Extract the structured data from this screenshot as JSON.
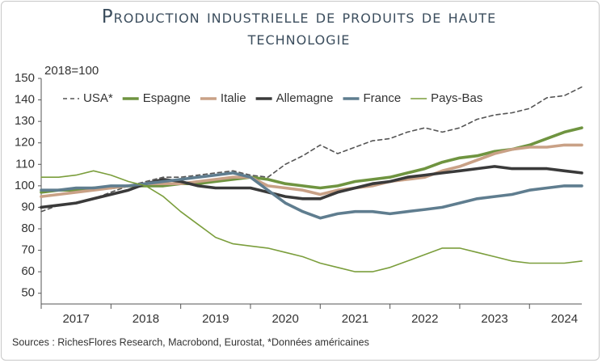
{
  "chart_data": {
    "type": "line",
    "title": "Production industrielle de produits de haute technologie",
    "subtitle": "2018=100",
    "source": "Sources : RichesFlores Research, Macrobond, Eurostat, *Données américaines",
    "x": [
      2017,
      2017.25,
      2017.5,
      2017.75,
      2018,
      2018.25,
      2018.5,
      2018.75,
      2019,
      2019.25,
      2019.5,
      2019.75,
      2020,
      2020.25,
      2020.5,
      2020.75,
      2021,
      2021.25,
      2021.5,
      2021.75,
      2022,
      2022.25,
      2022.5,
      2022.75,
      2023,
      2023.25,
      2023.5,
      2023.75,
      2024,
      2024.25,
      2024.5,
      2024.75
    ],
    "xlim": [
      2017,
      2024.75
    ],
    "xticks": [
      2017,
      2018,
      2019,
      2020,
      2021,
      2022,
      2023,
      2024
    ],
    "ylim": [
      45,
      150
    ],
    "yticks": [
      50,
      60,
      70,
      80,
      90,
      100,
      110,
      120,
      130,
      140,
      150
    ],
    "legend": "top-left",
    "series": [
      {
        "name": "USA*",
        "color": "#555555",
        "dashed": true,
        "values": [
          88,
          91,
          92,
          94,
          97,
          100,
          102,
          104,
          104,
          105,
          106,
          107,
          105,
          104,
          110,
          114,
          119,
          115,
          118,
          121,
          122,
          125,
          127,
          125,
          127,
          131,
          133,
          134,
          136,
          141,
          142,
          146
        ]
      },
      {
        "name": "Espagne",
        "color": "#6f9440",
        "values": [
          97,
          98,
          98,
          99,
          99,
          100,
          100,
          100,
          101,
          101,
          102,
          103,
          104,
          103,
          101,
          100,
          99,
          100,
          102,
          103,
          104,
          106,
          108,
          111,
          113,
          114,
          116,
          117,
          119,
          122,
          125,
          127
        ]
      },
      {
        "name": "Italie",
        "color": "#c9a186",
        "values": [
          95,
          96,
          97,
          98,
          99,
          100,
          101,
          101,
          101,
          102,
          103,
          104,
          104,
          100,
          99,
          98,
          96,
          98,
          99,
          100,
          102,
          103,
          104,
          107,
          109,
          112,
          115,
          117,
          118,
          118,
          119,
          119
        ]
      },
      {
        "name": "Allemagne",
        "color": "#3a3a3a",
        "values": [
          90,
          91,
          92,
          94,
          96,
          98,
          101,
          103,
          102,
          100,
          99,
          99,
          99,
          97,
          95,
          94,
          94,
          97,
          99,
          101,
          102,
          104,
          105,
          106,
          107,
          108,
          109,
          108,
          108,
          108,
          107,
          106
        ]
      },
      {
        "name": "France",
        "color": "#5f7d8f",
        "values": [
          98,
          98,
          99,
          99,
          100,
          100,
          101,
          102,
          103,
          104,
          105,
          106,
          104,
          98,
          92,
          88,
          85,
          87,
          88,
          88,
          87,
          88,
          89,
          90,
          92,
          94,
          95,
          96,
          98,
          99,
          100,
          100
        ]
      },
      {
        "name": "Pays-Bas",
        "color": "#7b9e3c",
        "thin": true,
        "values": [
          104,
          104,
          105,
          107,
          105,
          102,
          100,
          95,
          88,
          82,
          76,
          73,
          72,
          71,
          69,
          67,
          64,
          62,
          60,
          60,
          62,
          65,
          68,
          71,
          71,
          69,
          67,
          65,
          64,
          64,
          64,
          65
        ]
      }
    ]
  }
}
